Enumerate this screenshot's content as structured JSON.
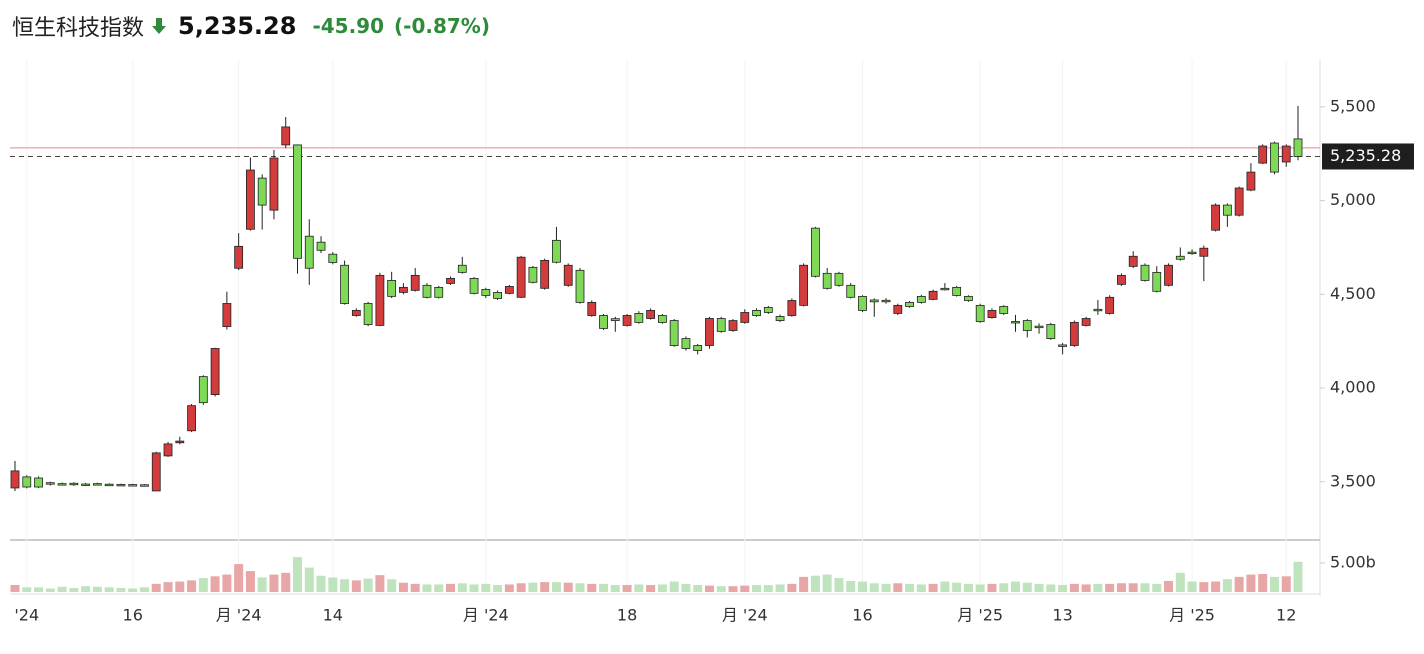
{
  "chart_data": {
    "type": "candlestick",
    "title": "恒生科技指数",
    "last_price": {
      "value": 5235.28,
      "label": "5,235.28"
    },
    "change": "-45.90",
    "change_percent": "(-0.87%)",
    "prev_close": 5281.18,
    "up_color": "#d23c3c",
    "down_color": "#7ed957",
    "volume_up_color": "#e8a6a6",
    "volume_down_color": "#bfe3bd",
    "ylim": [
      3200,
      5750
    ],
    "yticks": [
      {
        "value": 3500,
        "label": "3,500"
      },
      {
        "value": 4000,
        "label": "4,000"
      },
      {
        "value": 4500,
        "label": "4,500"
      },
      {
        "value": 5000,
        "label": "5,000"
      },
      {
        "value": 5500,
        "label": "5,500"
      }
    ],
    "volume_ylim": [
      0,
      8.6
    ],
    "volume_yticks": [
      {
        "value": 5,
        "label": "5.00b"
      }
    ],
    "categories": [
      null,
      "'24",
      null,
      null,
      null,
      null,
      null,
      null,
      null,
      null,
      "16",
      null,
      null,
      null,
      null,
      null,
      null,
      null,
      null,
      "月 '24",
      null,
      null,
      null,
      null,
      null,
      null,
      null,
      "14",
      null,
      null,
      null,
      null,
      null,
      null,
      null,
      null,
      null,
      null,
      null,
      null,
      "月 '24",
      null,
      null,
      null,
      null,
      null,
      null,
      null,
      null,
      null,
      null,
      null,
      "18",
      null,
      null,
      null,
      null,
      null,
      null,
      null,
      null,
      null,
      "月 '24",
      null,
      null,
      null,
      null,
      null,
      null,
      null,
      null,
      null,
      "16",
      null,
      null,
      null,
      null,
      null,
      null,
      null,
      null,
      null,
      "月 '25",
      null,
      null,
      null,
      null,
      null,
      null,
      "13",
      null,
      null,
      null,
      null,
      null,
      null,
      null,
      null,
      null,
      null,
      "月 '25",
      null,
      null,
      null,
      null,
      null,
      null,
      null,
      "12",
      null
    ],
    "open": [
      3467,
      3526,
      3520,
      3495,
      3490,
      3492,
      3488,
      3490,
      3487,
      3486,
      3485,
      3484,
      3451,
      3638,
      3708,
      3772,
      4061,
      3965,
      4328,
      4639,
      4847,
      5120,
      4949,
      5297,
      5297,
      4810,
      4778,
      4714,
      4655,
      4387,
      4451,
      4334,
      4574,
      4510,
      4521,
      4548,
      4537,
      4558,
      4655,
      4585,
      4526,
      4510,
      4505,
      4484,
      4644,
      4532,
      4788,
      4548,
      4628,
      4387,
      4387,
      4370,
      4334,
      4398,
      4371,
      4387,
      4360,
      4264,
      4227,
      4227,
      4371,
      4307,
      4350,
      4414,
      4430,
      4382,
      4387,
      4441,
      4853,
      4612,
      4612,
      4548,
      4489,
      4470,
      4468,
      4398,
      4457,
      4489,
      4473,
      4532,
      4537,
      4489,
      4441,
      4376,
      4435,
      4355,
      4360,
      4330,
      4339,
      4230,
      4227,
      4334,
      4420,
      4398,
      4553,
      4649,
      4655,
      4617,
      4548,
      4703,
      4725,
      4703,
      4842,
      4976,
      4922,
      5056,
      5200,
      5307,
      5206,
      5329
    ],
    "close": [
      3558,
      3472,
      3472,
      3488,
      3486,
      3485,
      3484,
      3486,
      3483,
      3484,
      3483,
      3482,
      3654,
      3702,
      3717,
      3906,
      3922,
      4211,
      4451,
      4756,
      5163,
      4976,
      5227,
      5393,
      4692,
      4639,
      4735,
      4670,
      4451,
      4414,
      4339,
      4601,
      4489,
      4537,
      4601,
      4484,
      4484,
      4585,
      4617,
      4505,
      4494,
      4478,
      4542,
      4698,
      4564,
      4681,
      4671,
      4655,
      4457,
      4457,
      4318,
      4360,
      4387,
      4350,
      4414,
      4350,
      4227,
      4211,
      4200,
      4371,
      4302,
      4360,
      4403,
      4387,
      4403,
      4360,
      4467,
      4655,
      4596,
      4532,
      4548,
      4484,
      4414,
      4460,
      4460,
      4441,
      4435,
      4457,
      4516,
      4526,
      4494,
      4467,
      4355,
      4414,
      4398,
      4350,
      4307,
      4328,
      4264,
      4225,
      4350,
      4371,
      4412,
      4484,
      4601,
      4703,
      4574,
      4516,
      4655,
      4687,
      4720,
      4746,
      4976,
      4922,
      5067,
      5152,
      5291,
      5152,
      5291,
      5235.28
    ],
    "high": [
      3611,
      3535,
      3528,
      3500,
      3496,
      3497,
      3494,
      3495,
      3492,
      3490,
      3489,
      3488,
      3660,
      3712,
      3740,
      3915,
      4068,
      4215,
      4514,
      4826,
      5230,
      5140,
      5270,
      5446,
      5300,
      4900,
      4810,
      4725,
      4680,
      4425,
      4460,
      4615,
      4620,
      4560,
      4640,
      4560,
      4545,
      4595,
      4700,
      4592,
      4535,
      4520,
      4550,
      4705,
      4652,
      4690,
      4860,
      4665,
      4640,
      4468,
      4395,
      4380,
      4395,
      4410,
      4425,
      4395,
      4368,
      4275,
      4235,
      4380,
      4380,
      4368,
      4420,
      4425,
      4438,
      4392,
      4478,
      4665,
      4860,
      4640,
      4620,
      4560,
      4495,
      4478,
      4480,
      4450,
      4465,
      4498,
      4525,
      4560,
      4545,
      4495,
      4450,
      4425,
      4442,
      4390,
      4368,
      4345,
      4348,
      4240,
      4360,
      4380,
      4470,
      4495,
      4612,
      4730,
      4665,
      4650,
      4665,
      4750,
      4740,
      4760,
      4985,
      4985,
      5075,
      5200,
      5300,
      5315,
      5300,
      5505
    ],
    "low": [
      3451,
      3465,
      3466,
      3480,
      3480,
      3478,
      3478,
      3480,
      3478,
      3480,
      3480,
      3479,
      3451,
      3632,
      3700,
      3765,
      3910,
      3955,
      4312,
      4630,
      4840,
      4845,
      4900,
      5280,
      4610,
      4550,
      4720,
      4660,
      4445,
      4380,
      4330,
      4330,
      4480,
      4500,
      4515,
      4478,
      4478,
      4550,
      4610,
      4500,
      4480,
      4470,
      4500,
      4480,
      4558,
      4525,
      4665,
      4540,
      4450,
      4380,
      4310,
      4300,
      4328,
      4343,
      4365,
      4343,
      4220,
      4200,
      4180,
      4210,
      4295,
      4300,
      4343,
      4380,
      4395,
      4352,
      4380,
      4435,
      4590,
      4525,
      4540,
      4478,
      4405,
      4380,
      4450,
      4390,
      4428,
      4450,
      4468,
      4520,
      4488,
      4460,
      4348,
      4370,
      4390,
      4300,
      4270,
      4290,
      4257,
      4180,
      4220,
      4328,
      4390,
      4392,
      4545,
      4640,
      4568,
      4510,
      4542,
      4680,
      4710,
      4570,
      4835,
      4860,
      4915,
      5050,
      5195,
      5140,
      5180,
      5215
    ],
    "volume": [
      1.2,
      0.8,
      0.8,
      0.6,
      0.9,
      0.7,
      1.0,
      0.9,
      0.8,
      0.7,
      0.6,
      0.8,
      1.4,
      1.7,
      1.8,
      2.0,
      2.4,
      2.7,
      3.0,
      4.8,
      3.6,
      2.5,
      3.0,
      3.3,
      6.0,
      4.2,
      2.8,
      2.5,
      2.2,
      2.0,
      2.3,
      2.9,
      2.2,
      1.6,
      1.4,
      1.3,
      1.3,
      1.4,
      1.5,
      1.3,
      1.4,
      1.2,
      1.3,
      1.5,
      1.6,
      1.7,
      1.7,
      1.6,
      1.5,
      1.4,
      1.4,
      1.2,
      1.2,
      1.3,
      1.2,
      1.3,
      1.8,
      1.4,
      1.2,
      1.1,
      1.0,
      1.0,
      1.1,
      1.2,
      1.2,
      1.3,
      1.4,
      2.6,
      2.8,
      3.0,
      2.4,
      1.9,
      1.8,
      1.5,
      1.4,
      1.5,
      1.4,
      1.3,
      1.4,
      1.8,
      1.6,
      1.4,
      1.3,
      1.4,
      1.5,
      1.8,
      1.6,
      1.4,
      1.3,
      1.2,
      1.4,
      1.3,
      1.4,
      1.4,
      1.5,
      1.5,
      1.5,
      1.4,
      1.9,
      3.3,
      1.8,
      1.7,
      1.8,
      2.2,
      2.6,
      3.0,
      3.1,
      2.6,
      2.7,
      5.2
    ]
  }
}
